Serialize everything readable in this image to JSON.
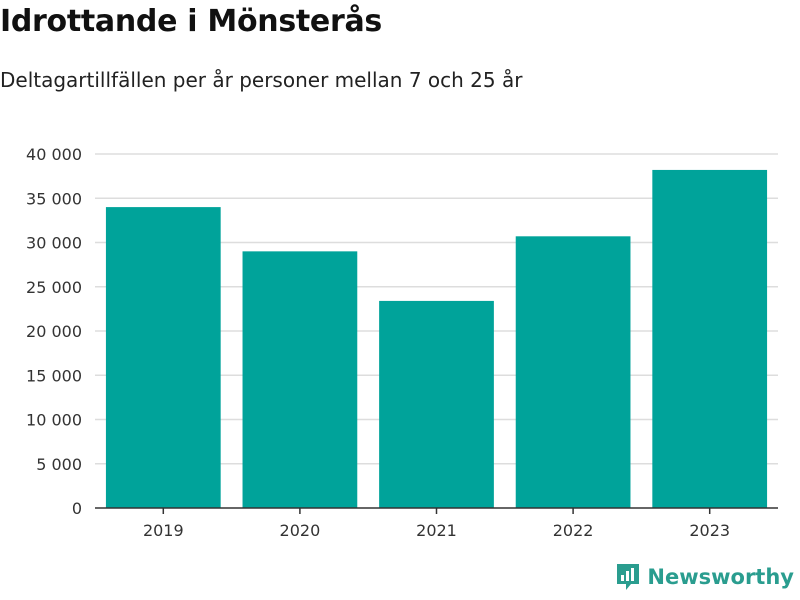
{
  "chart_data": {
    "type": "bar",
    "title": "Idrottande i Mönsterås",
    "subtitle": "Deltagartillfällen per år personer mellan 7 och 25 år",
    "categories": [
      "2019",
      "2020",
      "2021",
      "2022",
      "2023"
    ],
    "values": [
      34000,
      29000,
      23400,
      30700,
      38200
    ],
    "ylim": [
      0,
      40000
    ],
    "yticks": [
      0,
      5000,
      10000,
      15000,
      20000,
      25000,
      30000,
      35000,
      40000
    ],
    "ytick_labels": [
      "0",
      "5 000",
      "10 000",
      "15 000",
      "20 000",
      "25 000",
      "30 000",
      "35 000",
      "40 000"
    ],
    "xlabel": "",
    "ylabel": "",
    "grid": true,
    "bar_color": "#00a39a",
    "grid_color": "#dddddd",
    "axis_color": "#333333"
  },
  "brand": {
    "name": "Newsworthy",
    "icon": "newsworthy-logo-icon",
    "color": "#2a9d8f"
  }
}
